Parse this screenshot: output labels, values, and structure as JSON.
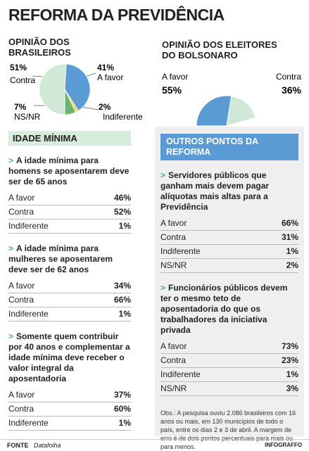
{
  "title": "REFORMA DA PREVIDÊNCIA",
  "chart_data": [
    {
      "type": "pie",
      "title": "OPINIÃO DOS BRASILEIROS",
      "categories": [
        "A favor",
        "Indiferente",
        "NS/NR",
        "Contra"
      ],
      "values": [
        41,
        2,
        7,
        51
      ],
      "value_labels": [
        "41%",
        "2%",
        "7%",
        "51%"
      ],
      "colors": [
        "#5b9bd5",
        "#f2d64b",
        "#6bb56f",
        "#cfe9d6"
      ]
    },
    {
      "type": "half_pie",
      "title": "OPINIÃO DOS ELEITORES DO BOLSONARO",
      "categories": [
        "A favor",
        "Contra"
      ],
      "values": [
        55,
        36
      ],
      "value_labels": [
        "55%",
        "36%"
      ],
      "colors": [
        "#5b9bd5",
        "#cfe9d6"
      ]
    }
  ],
  "left_section": {
    "header": "IDADE MÍNIMA",
    "marker": ">",
    "questions": [
      {
        "text": "A idade mínima para homens se aposentarem deve ser de 65 anos",
        "rows": [
          [
            "A favor",
            "46%"
          ],
          [
            "Contra",
            "52%"
          ],
          [
            "Indiferente",
            "1%"
          ]
        ]
      },
      {
        "text": "A idade mínima para mulheres se aposentarem deve ser de 62 anos",
        "rows": [
          [
            "A favor",
            "34%"
          ],
          [
            "Contra",
            "66%"
          ],
          [
            "Indiferente",
            "1%"
          ]
        ]
      },
      {
        "text": "Somente quem contribuir por 40 anos e complementar a idade mínima deve receber o valor integral da aposentadoria",
        "rows": [
          [
            "A favor",
            "37%"
          ],
          [
            "Contra",
            "60%"
          ],
          [
            "Indiferente",
            "1%"
          ]
        ]
      }
    ]
  },
  "right_section": {
    "header": "OUTROS PONTOS DA REFORMA",
    "marker": ">",
    "questions": [
      {
        "text": "Servidores públicos que ganham mais devem pagar alíquotas mais altas para a Previdência",
        "rows": [
          [
            "A favor",
            "66%"
          ],
          [
            "Contra",
            "31%"
          ],
          [
            "Indiferente",
            "1%"
          ],
          [
            "NS/NR",
            "2%"
          ]
        ]
      },
      {
        "text": "Funcionários públicos devem ter o mesmo teto de aposentadoria do que os trabalhadores da iniciativa privada",
        "rows": [
          [
            "A favor",
            "73%"
          ],
          [
            "Contra",
            "23%"
          ],
          [
            "Indiferente",
            "1%"
          ],
          [
            "NS/NR",
            "3%"
          ]
        ]
      }
    ]
  },
  "note": "Obs.: A pesquisa ouviu 2.086 brasileiros com 16 anos ou mais, em 130 municípios de todo o país, entre os dias 2 e 3 de abril. A margem de erro é de dois pontos percentuais para mais ou para menos.",
  "source_label": "FONTE",
  "source": "Datafolha",
  "brand": "INFOGRAFFO"
}
